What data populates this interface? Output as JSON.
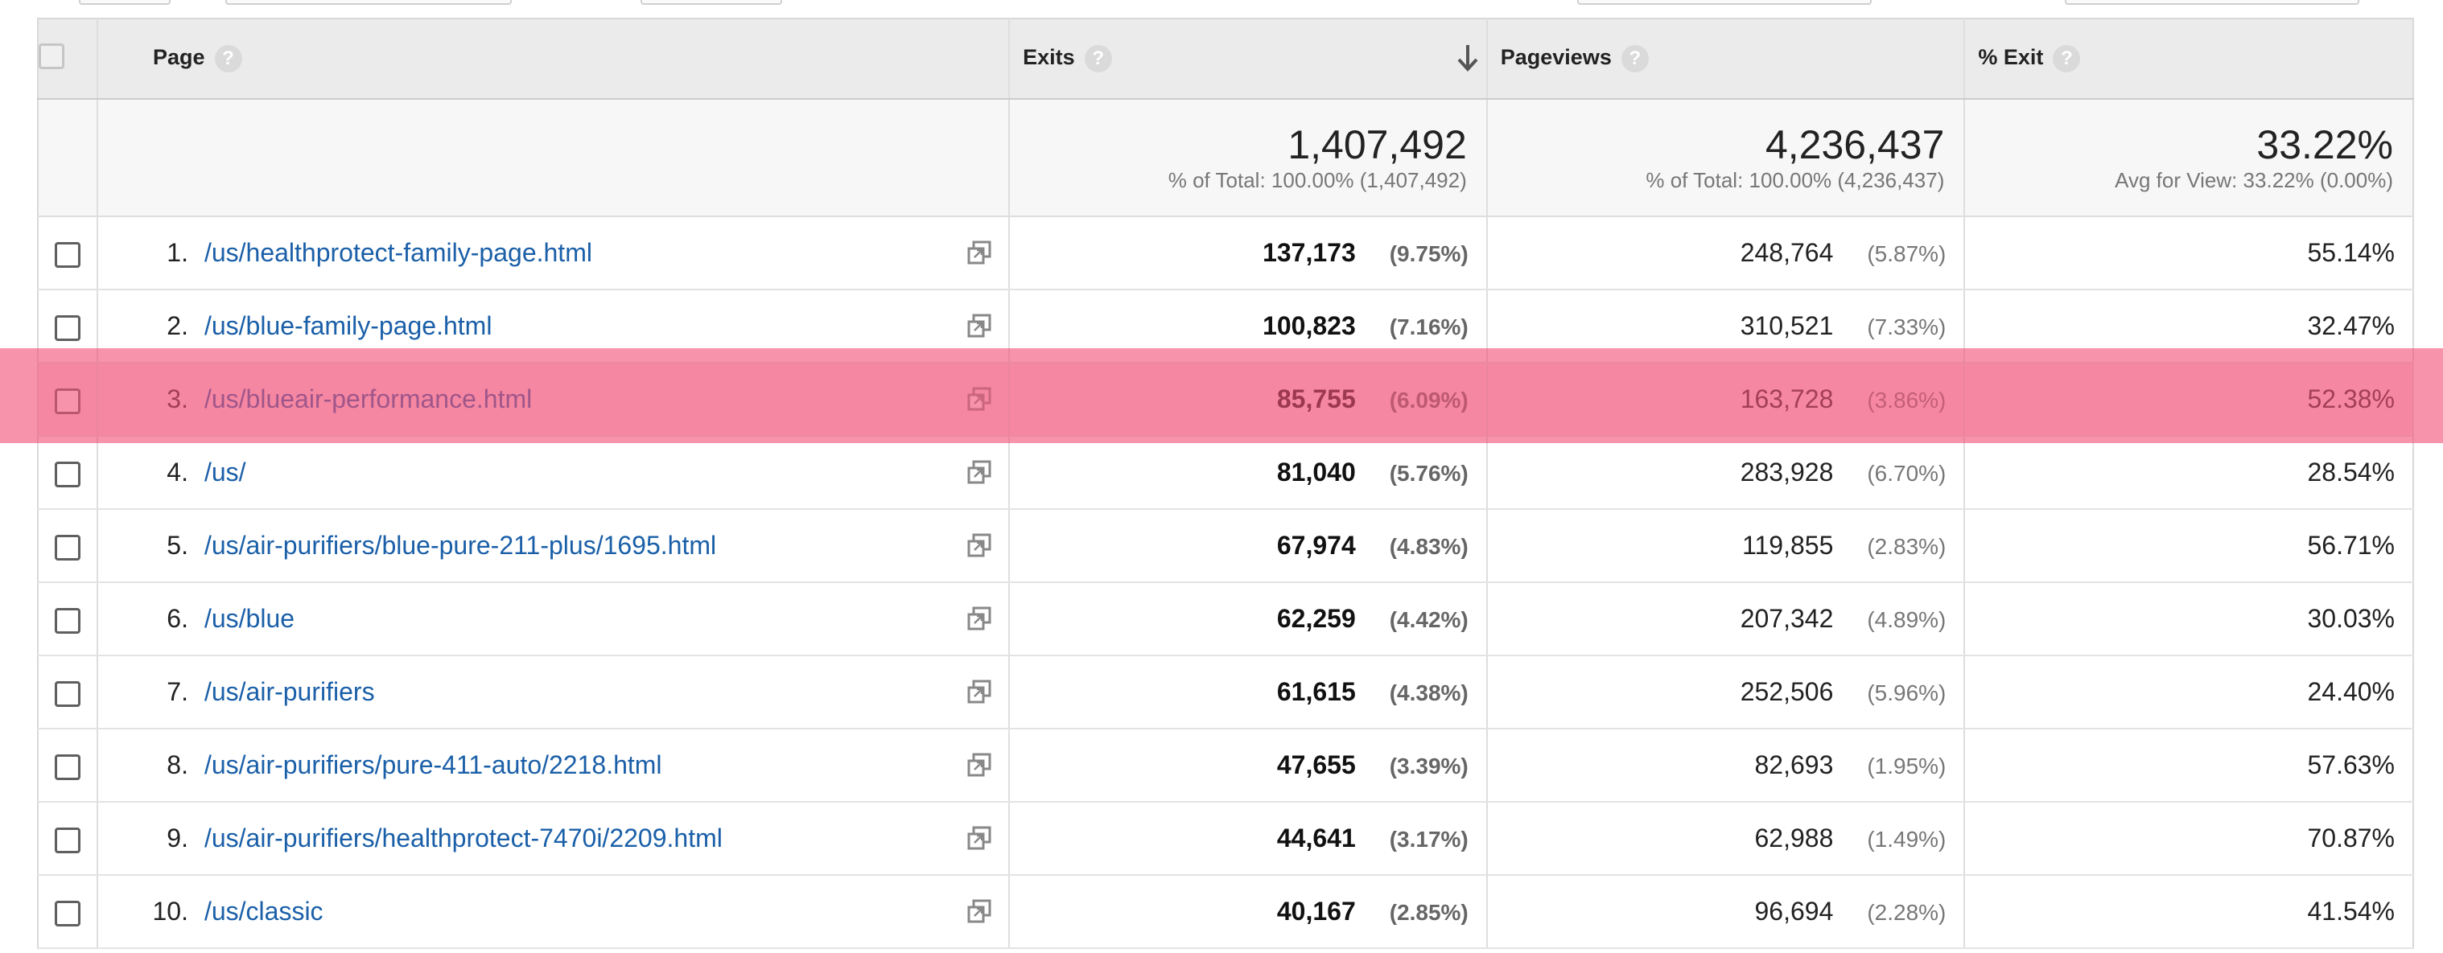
{
  "table": {
    "headers": {
      "page": "Page",
      "exits": "Exits",
      "pageviews": "Pageviews",
      "pct_exit": "% Exit",
      "help": "?"
    },
    "totals": {
      "exits": "1,407,492",
      "exits_sub": "% of Total: 100.00% (1,407,492)",
      "pageviews": "4,236,437",
      "pageviews_sub": "% of Total: 100.00% (4,236,437)",
      "pct_exit": "33.22%",
      "pct_exit_sub": "Avg for View: 33.22% (0.00%)"
    },
    "rows": [
      {
        "num": "1.",
        "page": "/us/healthprotect-family-page.html",
        "exits": "137,173",
        "exits_pct": "(9.75%)",
        "pageviews": "248,764",
        "pageviews_pct": "(5.87%)",
        "pct_exit": "55.14%"
      },
      {
        "num": "2.",
        "page": "/us/blue-family-page.html",
        "exits": "100,823",
        "exits_pct": "(7.16%)",
        "pageviews": "310,521",
        "pageviews_pct": "(7.33%)",
        "pct_exit": "32.47%"
      },
      {
        "num": "3.",
        "page": "/us/blueair-performance.html",
        "exits": "85,755",
        "exits_pct": "(6.09%)",
        "pageviews": "163,728",
        "pageviews_pct": "(3.86%)",
        "pct_exit": "52.38%"
      },
      {
        "num": "4.",
        "page": "/us/",
        "exits": "81,040",
        "exits_pct": "(5.76%)",
        "pageviews": "283,928",
        "pageviews_pct": "(6.70%)",
        "pct_exit": "28.54%"
      },
      {
        "num": "5.",
        "page": "/us/air-purifiers/blue-pure-211-plus/1695.html",
        "exits": "67,974",
        "exits_pct": "(4.83%)",
        "pageviews": "119,855",
        "pageviews_pct": "(2.83%)",
        "pct_exit": "56.71%"
      },
      {
        "num": "6.",
        "page": "/us/blue",
        "exits": "62,259",
        "exits_pct": "(4.42%)",
        "pageviews": "207,342",
        "pageviews_pct": "(4.89%)",
        "pct_exit": "30.03%"
      },
      {
        "num": "7.",
        "page": "/us/air-purifiers",
        "exits": "61,615",
        "exits_pct": "(4.38%)",
        "pageviews": "252,506",
        "pageviews_pct": "(5.96%)",
        "pct_exit": "24.40%"
      },
      {
        "num": "8.",
        "page": "/us/air-purifiers/pure-411-auto/2218.html",
        "exits": "47,655",
        "exits_pct": "(3.39%)",
        "pageviews": "82,693",
        "pageviews_pct": "(1.95%)",
        "pct_exit": "57.63%"
      },
      {
        "num": "9.",
        "page": "/us/air-purifiers/healthprotect-7470i/2209.html",
        "exits": "44,641",
        "exits_pct": "(3.17%)",
        "pageviews": "62,988",
        "pageviews_pct": "(1.49%)",
        "pct_exit": "70.87%"
      },
      {
        "num": "10.",
        "page": "/us/classic",
        "exits": "40,167",
        "exits_pct": "(2.85%)",
        "pageviews": "96,694",
        "pageviews_pct": "(2.28%)",
        "pct_exit": "41.54%"
      }
    ],
    "highlighted_row": 3,
    "sort_column": "exits",
    "sort_direction": "descending"
  },
  "colors": {
    "link": "#1a5fa8",
    "highlight": "#f25078",
    "header_bg": "#ebebeb"
  },
  "icons": {
    "sort": "arrow-down-icon",
    "help": "help-icon",
    "open_page": "open-external-icon"
  }
}
